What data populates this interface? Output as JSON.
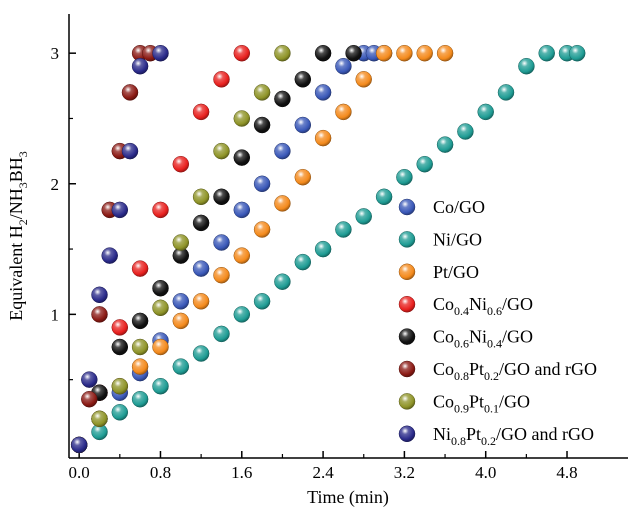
{
  "chart_data": {
    "type": "scatter",
    "title": "",
    "xlabel": "Time (min)",
    "ylabel": {
      "main": "Equivalent H",
      "sub1": "2",
      "mid": "/NH",
      "sub2": "3",
      "tail": "BH",
      "sub3": "3"
    },
    "xlim": [
      -0.1,
      5.4
    ],
    "ylim": [
      -0.1,
      3.3
    ],
    "xticks": [
      "0.0",
      "0.8",
      "1.6",
      "2.4",
      "3.2",
      "4.0",
      "4.8"
    ],
    "xtick_values": [
      0.0,
      0.8,
      1.6,
      2.4,
      3.2,
      4.0,
      4.8
    ],
    "yticks": [
      "1",
      "2",
      "3"
    ],
    "ytick_values": [
      1,
      2,
      3
    ],
    "grid": false,
    "legend_position": "right",
    "series": [
      {
        "key": "co_go",
        "legend": [
          {
            "t": "Co/GO"
          }
        ],
        "color": "#3a58b8",
        "x": [
          0.0,
          0.2,
          0.4,
          0.6,
          0.8,
          1.0,
          1.2,
          1.4,
          1.6,
          1.8,
          2.0,
          2.2,
          2.4,
          2.6,
          2.8,
          2.9,
          3.0
        ],
        "y": [
          0.0,
          0.2,
          0.4,
          0.55,
          0.8,
          1.1,
          1.35,
          1.55,
          1.8,
          2.0,
          2.25,
          2.45,
          2.7,
          2.9,
          3.0,
          3.0,
          3.0
        ]
      },
      {
        "key": "ni_go",
        "legend": [
          {
            "t": "Ni/GO"
          }
        ],
        "color": "#1f9c94",
        "x": [
          0.0,
          0.2,
          0.4,
          0.6,
          0.8,
          1.0,
          1.2,
          1.4,
          1.6,
          1.8,
          2.0,
          2.2,
          2.4,
          2.6,
          2.8,
          3.0,
          3.2,
          3.4,
          3.6,
          3.8,
          4.0,
          4.2,
          4.4,
          4.6,
          4.8,
          4.9
        ],
        "y": [
          0.0,
          0.1,
          0.25,
          0.35,
          0.45,
          0.6,
          0.7,
          0.85,
          1.0,
          1.1,
          1.25,
          1.4,
          1.5,
          1.65,
          1.75,
          1.9,
          2.05,
          2.15,
          2.3,
          2.4,
          2.55,
          2.7,
          2.9,
          3.0,
          3.0,
          3.0
        ]
      },
      {
        "key": "pt_go",
        "legend": [
          {
            "t": "Pt/GO"
          }
        ],
        "color": "#f48a1c",
        "x": [
          0.0,
          0.2,
          0.4,
          0.6,
          0.8,
          1.0,
          1.2,
          1.4,
          1.6,
          1.8,
          2.0,
          2.2,
          2.4,
          2.6,
          2.8,
          3.0,
          3.2,
          3.4,
          3.6
        ],
        "y": [
          0.0,
          0.2,
          0.45,
          0.6,
          0.75,
          0.95,
          1.1,
          1.3,
          1.45,
          1.65,
          1.85,
          2.05,
          2.35,
          2.55,
          2.8,
          3.0,
          3.0,
          3.0,
          3.0
        ]
      },
      {
        "key": "co04ni06_go",
        "legend": [
          {
            "t": "Co"
          },
          {
            "t": "0.4",
            "sub": true
          },
          {
            "t": "Ni"
          },
          {
            "t": "0.6",
            "sub": true
          },
          {
            "t": "/GO"
          }
        ],
        "color": "#e8201e",
        "x": [
          0.0,
          0.2,
          0.4,
          0.6,
          0.8,
          1.0,
          1.2,
          1.4,
          1.6
        ],
        "y": [
          0.0,
          0.4,
          0.9,
          1.35,
          1.8,
          2.15,
          2.55,
          2.8,
          3.0
        ]
      },
      {
        "key": "co06ni04_go",
        "legend": [
          {
            "t": "Co"
          },
          {
            "t": "0.6",
            "sub": true
          },
          {
            "t": "Ni"
          },
          {
            "t": "0.4",
            "sub": true
          },
          {
            "t": "/GO"
          }
        ],
        "color": "#111111",
        "x": [
          0.0,
          0.2,
          0.4,
          0.6,
          0.8,
          1.0,
          1.2,
          1.4,
          1.6,
          1.8,
          2.0,
          2.2,
          2.4,
          2.7
        ],
        "y": [
          0.0,
          0.4,
          0.75,
          0.95,
          1.2,
          1.45,
          1.7,
          1.9,
          2.2,
          2.45,
          2.65,
          2.8,
          3.0,
          3.0
        ]
      },
      {
        "key": "co08pt02_go_rgo",
        "legend": [
          {
            "t": "Co"
          },
          {
            "t": "0.8",
            "sub": true
          },
          {
            "t": "Pt"
          },
          {
            "t": "0.2",
            "sub": true
          },
          {
            "t": "/GO and rGO"
          }
        ],
        "color": "#8b1a14",
        "x": [
          0.0,
          0.1,
          0.2,
          0.3,
          0.4,
          0.5,
          0.6,
          0.7
        ],
        "y": [
          0.0,
          0.35,
          1.0,
          1.8,
          2.25,
          2.7,
          3.0,
          3.0
        ]
      },
      {
        "key": "co09pt01_go",
        "legend": [
          {
            "t": "Co"
          },
          {
            "t": "0.9",
            "sub": true
          },
          {
            "t": "Pt"
          },
          {
            "t": "0.1",
            "sub": true
          },
          {
            "t": "/GO"
          }
        ],
        "color": "#8f9428",
        "x": [
          0.0,
          0.2,
          0.4,
          0.6,
          0.8,
          1.0,
          1.2,
          1.4,
          1.6,
          1.8,
          2.0
        ],
        "y": [
          0.0,
          0.2,
          0.45,
          0.75,
          1.05,
          1.55,
          1.9,
          2.25,
          2.5,
          2.7,
          3.0
        ]
      },
      {
        "key": "ni08pt02_go_rgo",
        "legend": [
          {
            "t": "Ni"
          },
          {
            "t": "0.8",
            "sub": true
          },
          {
            "t": "Pt"
          },
          {
            "t": "0.2",
            "sub": true
          },
          {
            "t": "/GO and rGO"
          }
        ],
        "color": "#2a2a8a",
        "x": [
          0.0,
          0.1,
          0.2,
          0.3,
          0.4,
          0.5,
          0.6,
          0.8
        ],
        "y": [
          0.0,
          0.5,
          1.15,
          1.45,
          1.8,
          2.25,
          2.9,
          3.0
        ]
      }
    ]
  }
}
